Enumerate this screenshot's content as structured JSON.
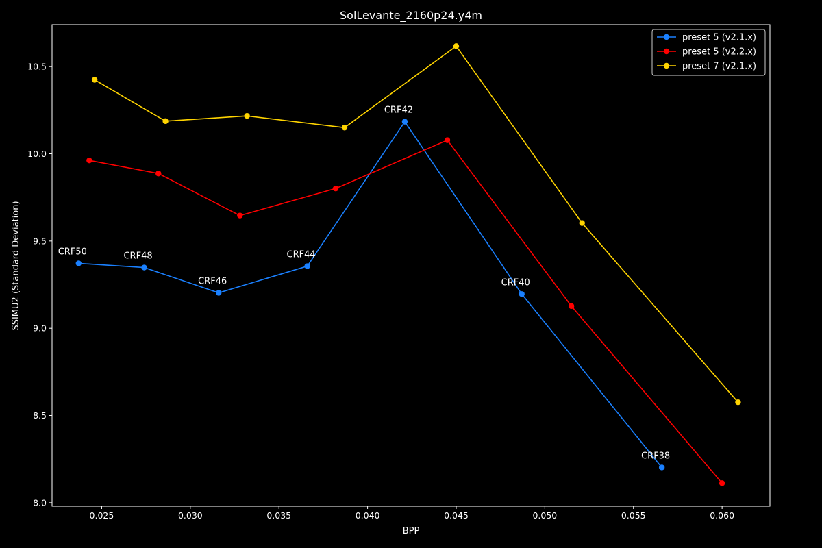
{
  "chart_data": {
    "type": "line",
    "title": "SolLevante_2160p24.y4m",
    "xlabel": "BPP",
    "ylabel": "SSIMU2 (Standard Deviation)",
    "xlim": [
      0.0222,
      0.0627
    ],
    "ylim": [
      7.98,
      10.74
    ],
    "x_ticks": [
      0.025,
      0.03,
      0.035,
      0.04,
      0.045,
      0.05,
      0.055,
      0.06
    ],
    "x_tick_labels": [
      "0.025",
      "0.030",
      "0.035",
      "0.040",
      "0.045",
      "0.050",
      "0.055",
      "0.060"
    ],
    "y_ticks": [
      8.0,
      8.5,
      9.0,
      9.5,
      10.0,
      10.5
    ],
    "y_tick_labels": [
      "8.0",
      "8.5",
      "9.0",
      "9.5",
      "10.0",
      "10.5"
    ],
    "grid": false,
    "legend_position": "top-right",
    "series": [
      {
        "name": "preset 5 (v2.1.x)",
        "color": "#1a80ff",
        "x": [
          0.0237,
          0.0274,
          0.0316,
          0.0366,
          0.0421,
          0.0487,
          0.0566
        ],
        "y": [
          9.372,
          9.348,
          9.203,
          9.356,
          10.184,
          9.196,
          8.202
        ],
        "point_labels": [
          "CRF50",
          "CRF48",
          "CRF46",
          "CRF44",
          "CRF42",
          "CRF40",
          "CRF38"
        ]
      },
      {
        "name": "preset 5 (v2.2.x)",
        "color": "#ff0000",
        "x": [
          0.0243,
          0.0282,
          0.0328,
          0.0382,
          0.0445,
          0.0515,
          0.06
        ],
        "y": [
          9.962,
          9.887,
          9.646,
          9.801,
          10.078,
          9.127,
          8.112
        ]
      },
      {
        "name": "preset 7 (v2.1.x)",
        "color": "#ffd400",
        "x": [
          0.0246,
          0.0286,
          0.0332,
          0.0387,
          0.045,
          0.0521,
          0.0609
        ],
        "y": [
          10.424,
          10.187,
          10.217,
          10.15,
          10.617,
          9.603,
          8.576
        ]
      }
    ]
  }
}
